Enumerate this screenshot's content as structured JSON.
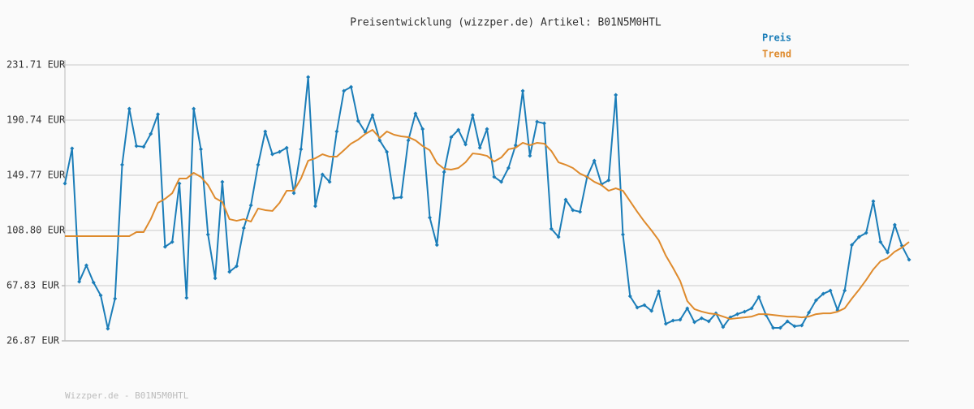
{
  "chart_data": {
    "type": "line",
    "title": "Preisentwicklung (wizzper.de) Artikel: B01N5M0HTL",
    "footer": "Wizzper.de - B01N5M0HTL",
    "ylim": [
      26.87,
      231.71
    ],
    "yticks": [
      {
        "value": 26.87,
        "label": "26.87 EUR"
      },
      {
        "value": 67.83,
        "label": "67.83 EUR"
      },
      {
        "value": 108.8,
        "label": "108.80 EUR"
      },
      {
        "value": 149.77,
        "label": "149.77 EUR"
      },
      {
        "value": 190.74,
        "label": "190.74 EUR"
      },
      {
        "value": 231.71,
        "label": "231.71 EUR"
      }
    ],
    "grid": true,
    "series": [
      {
        "name": "Preis",
        "color": "#1b7db8",
        "markers": true,
        "values": [
          143.7,
          169.7,
          70.8,
          82.9,
          70.2,
          60.6,
          35.9,
          58.2,
          157.6,
          199.2,
          171.5,
          170.9,
          180.5,
          195.0,
          96.7,
          100.3,
          143.7,
          58.8,
          199.2,
          169.1,
          105.8,
          73.3,
          144.9,
          78.1,
          82.3,
          110.6,
          127.5,
          157.6,
          182.3,
          165.4,
          167.2,
          170.2,
          136.5,
          169.1,
          222.7,
          126.9,
          150.4,
          144.9,
          182.3,
          212.4,
          215.4,
          190.1,
          181.7,
          194.4,
          175.7,
          167.2,
          132.9,
          133.5,
          175.7,
          195.6,
          184.1,
          118.4,
          98.0,
          152.2,
          178.1,
          183.5,
          172.7,
          194.4,
          170.2,
          184.1,
          148.6,
          144.9,
          155.2,
          172.1,
          212.4,
          164.2,
          189.5,
          188.3,
          110.0,
          104.0,
          131.7,
          123.9,
          122.7,
          148.6,
          160.6,
          143.1,
          146.1,
          209.4,
          105.8,
          60.0,
          51.6,
          53.4,
          49.1,
          63.6,
          39.5,
          41.9,
          42.5,
          51.0,
          40.7,
          43.7,
          41.3,
          47.3,
          37.1,
          44.3,
          46.7,
          48.5,
          51.0,
          59.4,
          46.1,
          36.5,
          36.5,
          41.3,
          37.7,
          38.3,
          47.9,
          57.0,
          61.8,
          64.2,
          49.7,
          64.2,
          98.0,
          104.0,
          107.0,
          130.5,
          100.3,
          92.5,
          113.0,
          97.4,
          87.1
        ]
      },
      {
        "name": "Trend",
        "color": "#de8a2c",
        "markers": false,
        "values": [
          104.6,
          104.6,
          104.6,
          104.6,
          104.6,
          104.6,
          104.6,
          104.6,
          104.6,
          104.6,
          107.6,
          107.6,
          117.2,
          129.3,
          132.3,
          136.5,
          147.4,
          147.4,
          151.6,
          148.6,
          142.5,
          132.9,
          129.9,
          117.2,
          116.0,
          117.2,
          115.4,
          125.1,
          123.9,
          123.3,
          129.3,
          138.3,
          138.3,
          147.4,
          160.6,
          162.4,
          165.4,
          163.6,
          163.6,
          168.4,
          173.3,
          176.3,
          180.5,
          183.5,
          177.5,
          182.3,
          179.9,
          178.7,
          178.1,
          175.7,
          171.5,
          168.4,
          158.8,
          154.6,
          154.0,
          155.2,
          159.4,
          166.0,
          165.4,
          164.2,
          160.0,
          163.0,
          169.1,
          170.2,
          173.9,
          172.1,
          173.9,
          173.3,
          167.8,
          159.4,
          157.6,
          155.2,
          151.0,
          148.6,
          144.9,
          142.5,
          138.3,
          140.1,
          138.3,
          130.5,
          122.7,
          115.4,
          108.8,
          101.6,
          90.1,
          81.1,
          71.4,
          56.4,
          50.4,
          48.6,
          47.3,
          46.7,
          44.9,
          43.1,
          43.7,
          44.3,
          44.9,
          46.7,
          46.7,
          46.1,
          45.5,
          44.9,
          44.9,
          44.3,
          44.9,
          46.7,
          47.3,
          47.3,
          48.5,
          51.0,
          58.2,
          64.8,
          72.0,
          79.9,
          85.9,
          88.3,
          93.1,
          96.1,
          100.3
        ]
      }
    ]
  }
}
